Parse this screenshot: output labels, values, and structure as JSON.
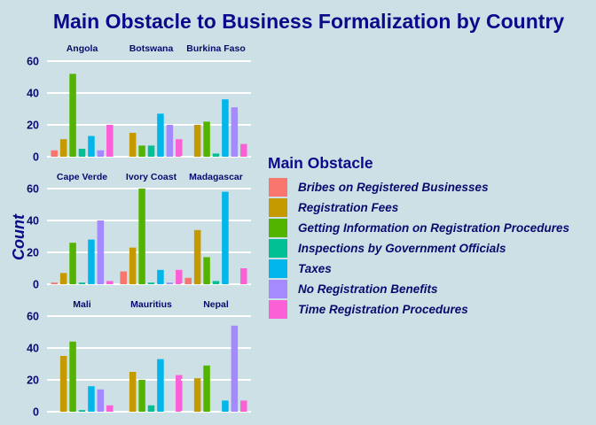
{
  "chart_data": {
    "type": "bar",
    "title": "Main Obstacle to Business Formalization by Country",
    "xlabel": "",
    "ylabel": "Count",
    "ylim": [
      0,
      60
    ],
    "yticks": [
      0,
      20,
      40,
      60
    ],
    "grid": true,
    "legend_title": "Main Obstacle",
    "legend_position": "right",
    "categories": [
      "Bribes on Registered Businesses",
      "Registration Fees",
      "Getting Information on Registration Procedures",
      "Inspections by Government Officials",
      "Taxes",
      "No Registration Benefits",
      "Time Registration Procedures"
    ],
    "colors": [
      "#F8766D",
      "#C49A00",
      "#53B400",
      "#00C094",
      "#00B6EB",
      "#A58AFF",
      "#FB61D7"
    ],
    "panels": [
      {
        "name": "Angola",
        "values": [
          4,
          11,
          52,
          5,
          13,
          4,
          20
        ]
      },
      {
        "name": "Botswana",
        "values": [
          0,
          15,
          7,
          7,
          27,
          20,
          11
        ]
      },
      {
        "name": "Burkina Faso",
        "values": [
          0,
          20,
          22,
          2,
          36,
          31,
          8
        ]
      },
      {
        "name": "Cape Verde",
        "values": [
          1,
          7,
          26,
          1,
          28,
          40,
          2
        ]
      },
      {
        "name": "Ivory Coast",
        "values": [
          8,
          23,
          60,
          1,
          9,
          1,
          9
        ]
      },
      {
        "name": "Madagascar",
        "values": [
          4,
          34,
          17,
          2,
          58,
          0,
          10
        ]
      },
      {
        "name": "Mali",
        "values": [
          0,
          35,
          44,
          1,
          16,
          14,
          4
        ]
      },
      {
        "name": "Mauritius",
        "values": [
          0,
          25,
          20,
          4,
          33,
          0,
          23
        ]
      },
      {
        "name": "Nepal",
        "values": [
          0,
          21,
          29,
          0,
          7,
          54,
          7
        ]
      }
    ]
  }
}
